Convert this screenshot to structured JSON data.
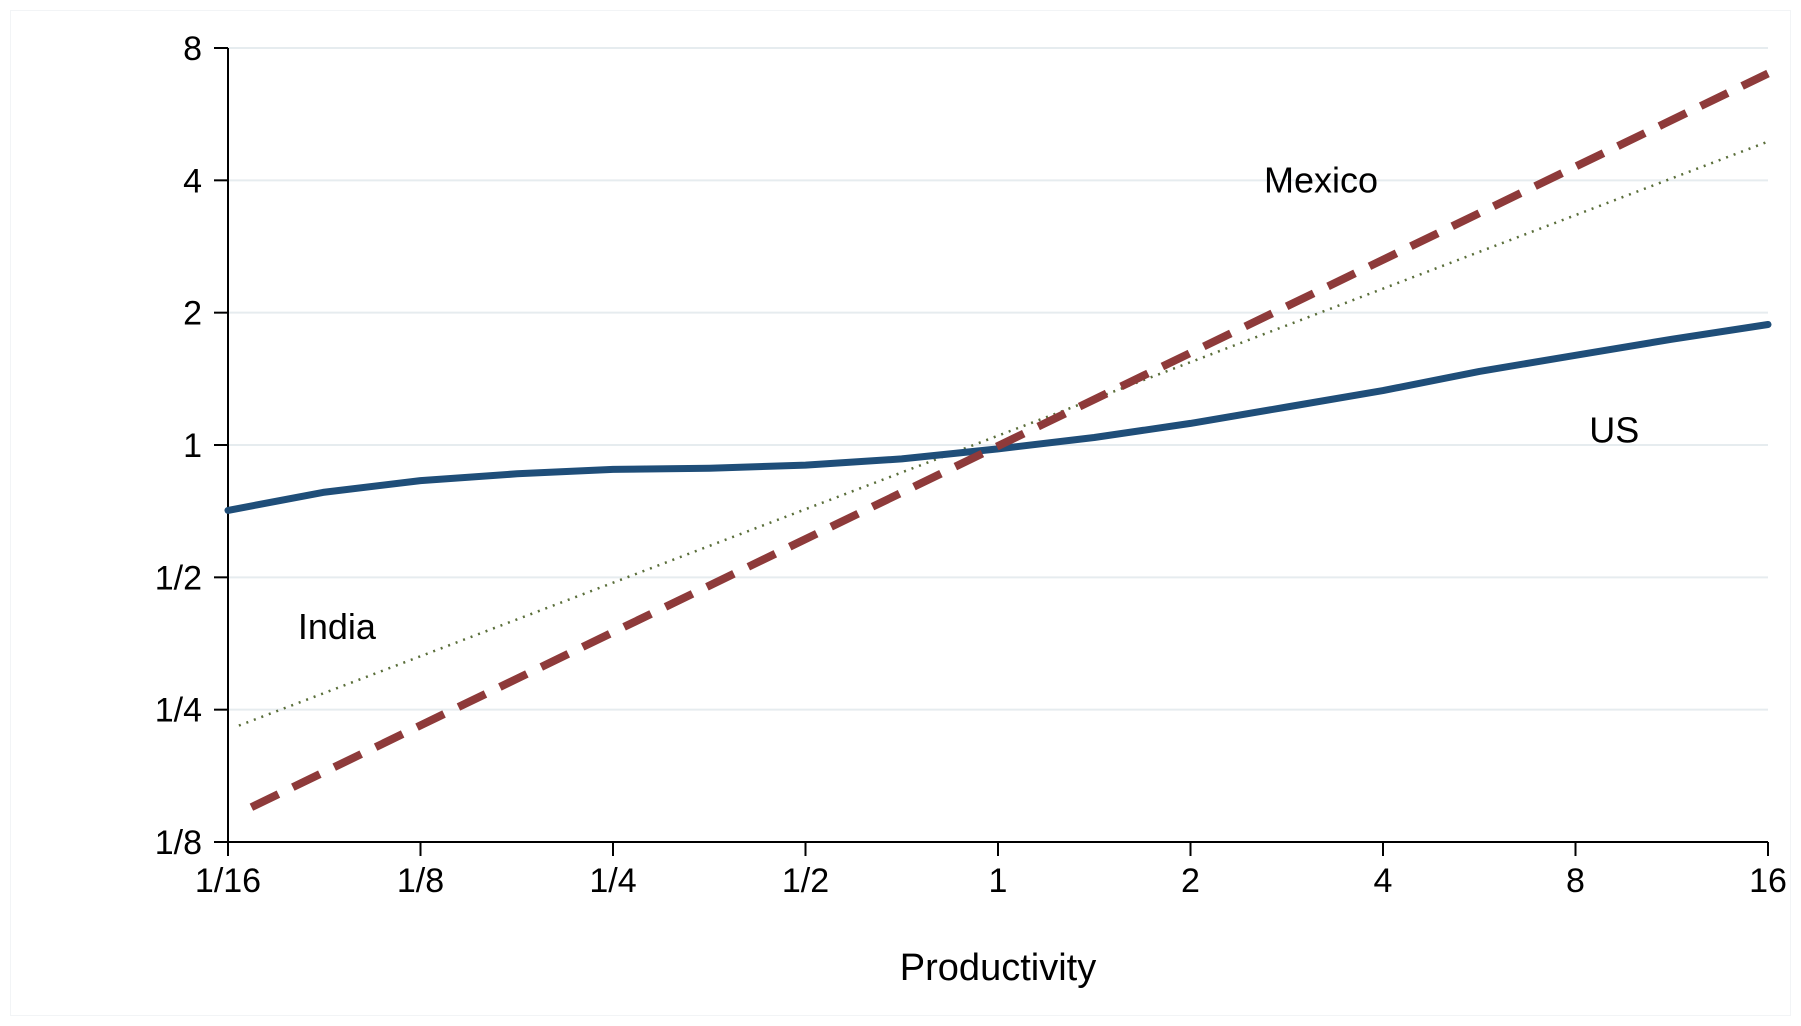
{
  "chart_data": {
    "type": "line",
    "title": "",
    "xlabel": "Productivity",
    "ylabel": "",
    "x_scale": "log2",
    "y_scale": "log2",
    "xlim": [
      0.0625,
      16
    ],
    "ylim": [
      0.125,
      8
    ],
    "x_ticks": [
      {
        "value": 0.0625,
        "label": "1/16"
      },
      {
        "value": 0.125,
        "label": "1/8"
      },
      {
        "value": 0.25,
        "label": "1/4"
      },
      {
        "value": 0.5,
        "label": "1/2"
      },
      {
        "value": 1,
        "label": "1"
      },
      {
        "value": 2,
        "label": "2"
      },
      {
        "value": 4,
        "label": "4"
      },
      {
        "value": 8,
        "label": "8"
      },
      {
        "value": 16,
        "label": "16"
      }
    ],
    "y_ticks": [
      {
        "value": 0.125,
        "label": "1/8"
      },
      {
        "value": 0.25,
        "label": "1/4"
      },
      {
        "value": 0.5,
        "label": "1/2"
      },
      {
        "value": 1,
        "label": "1"
      },
      {
        "value": 2,
        "label": "2"
      },
      {
        "value": 4,
        "label": "4"
      },
      {
        "value": 8,
        "label": "8"
      }
    ],
    "grid": "horizontal",
    "series": [
      {
        "name": "US",
        "color": "#1f4e79",
        "style": "solid",
        "x": [
          0.0625,
          0.088,
          0.125,
          0.177,
          0.25,
          0.354,
          0.5,
          0.707,
          1,
          1.414,
          2,
          2.83,
          4,
          5.66,
          8,
          11.3,
          16
        ],
        "y": [
          0.71,
          0.78,
          0.83,
          0.86,
          0.88,
          0.885,
          0.9,
          0.93,
          0.98,
          1.04,
          1.12,
          1.22,
          1.33,
          1.47,
          1.6,
          1.74,
          1.88
        ]
      },
      {
        "name": "Mexico",
        "color": "#8e3a3a",
        "style": "dashed",
        "x": [
          0.068,
          16
        ],
        "y": [
          0.15,
          7
        ]
      },
      {
        "name": "India",
        "color": "#5a6e3a",
        "style": "dotted",
        "x": [
          0.065,
          16
        ],
        "y": [
          0.23,
          4.9
        ]
      }
    ],
    "annotations": [
      {
        "text": "Mexico",
        "x": 3.2,
        "y": 4
      },
      {
        "text": "US",
        "x": 9.2,
        "y": 1.08
      },
      {
        "text": "India",
        "x": 0.0925,
        "y": 0.385
      }
    ]
  }
}
